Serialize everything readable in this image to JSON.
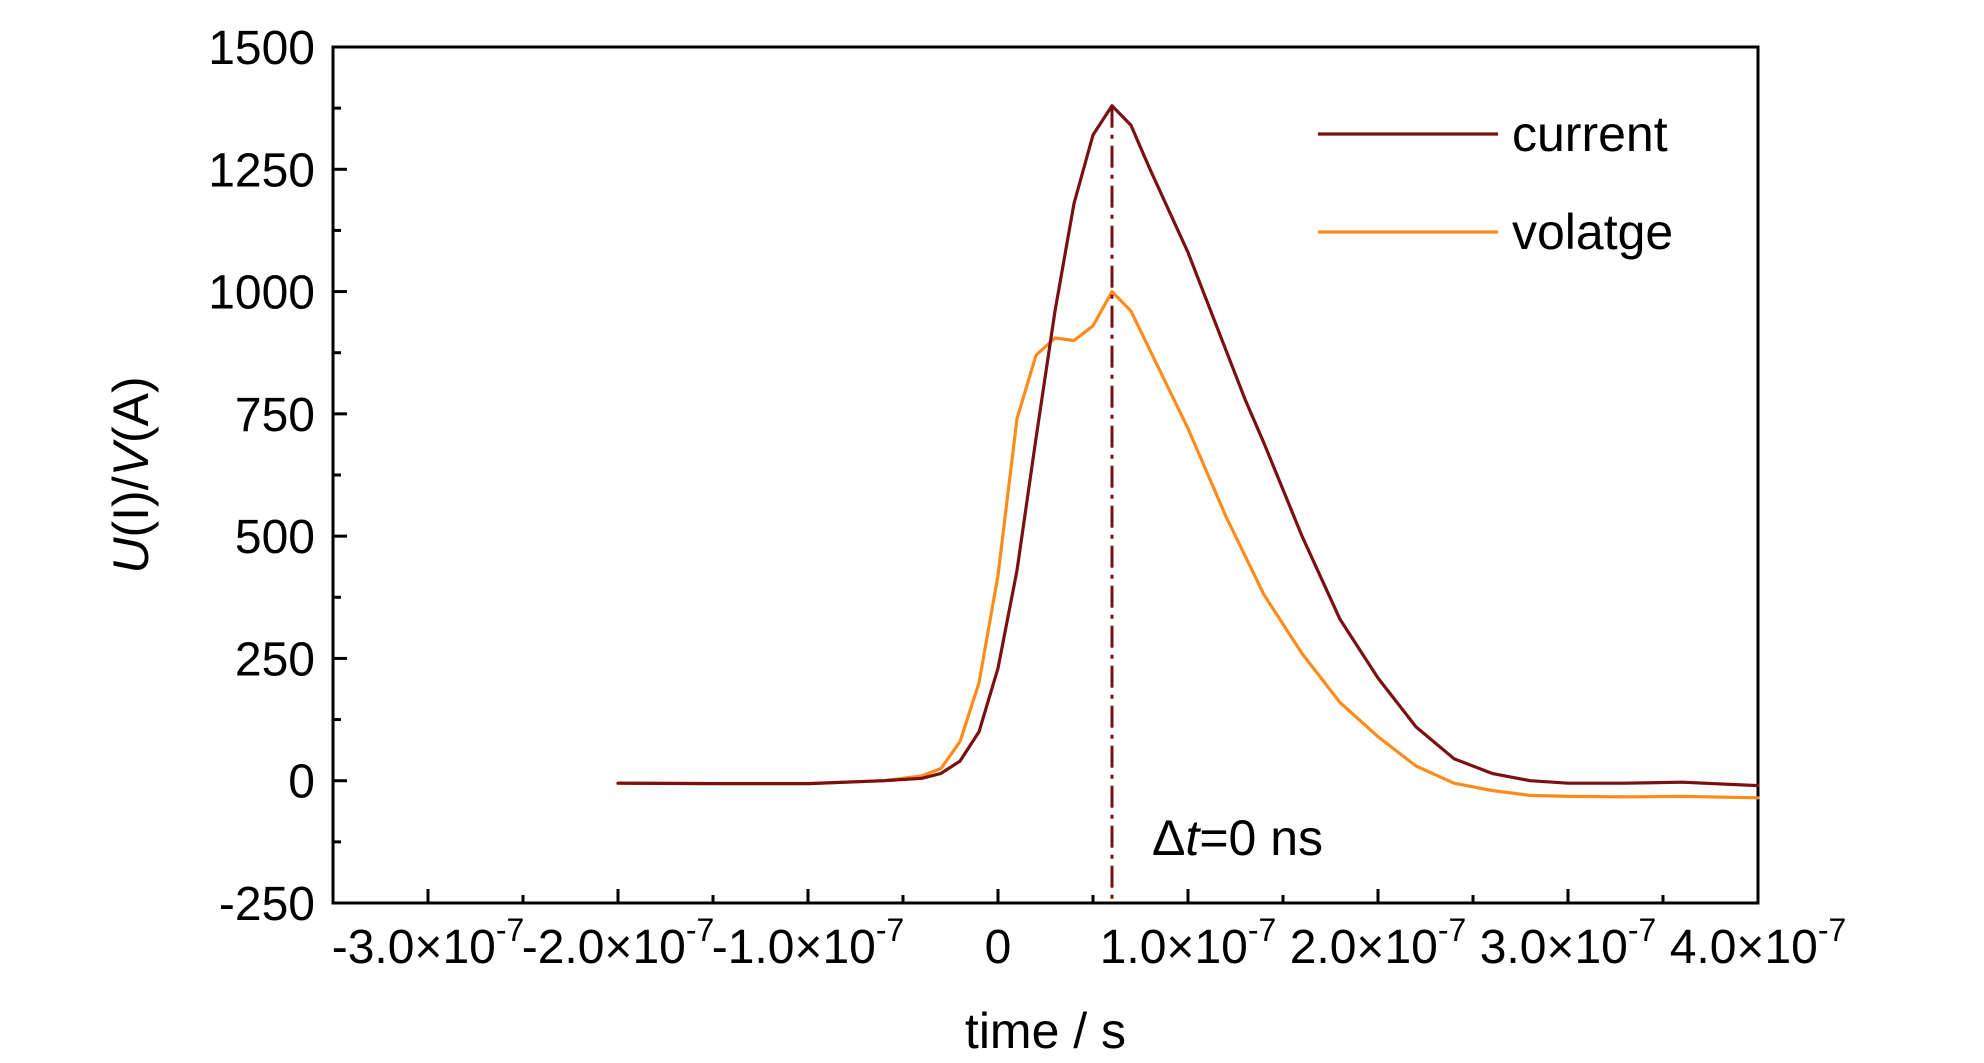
{
  "chart_data": {
    "type": "line",
    "title": "",
    "xlabel": "time / s",
    "ylabel": "U(I)/V(A)",
    "xlim": [
      -3.5e-07,
      4e-07
    ],
    "ylim": [
      -250,
      1500
    ],
    "x_ticks": [
      {
        "value": -3e-07,
        "label": "-3.0×10-7"
      },
      {
        "value": -2e-07,
        "label": "-2.0×10-7"
      },
      {
        "value": -1e-07,
        "label": "-1.0×10-7"
      },
      {
        "value": 0,
        "label": "0"
      },
      {
        "value": 1e-07,
        "label": "1.0×10-7"
      },
      {
        "value": 2e-07,
        "label": "2.0×10-7"
      },
      {
        "value": 3e-07,
        "label": "3.0×10-7"
      },
      {
        "value": 4e-07,
        "label": "4.0×10-7"
      }
    ],
    "y_ticks": [
      -250,
      0,
      250,
      500,
      750,
      1000,
      1250,
      1500
    ],
    "grid": false,
    "legend_position": "top-right",
    "series": [
      {
        "name": "current",
        "color": "#7B1010",
        "points": [
          [
            -2e-07,
            -5
          ],
          [
            -1.5e-07,
            -6
          ],
          [
            -1e-07,
            -6
          ],
          [
            -6e-08,
            0
          ],
          [
            -4e-08,
            5
          ],
          [
            -3e-08,
            15
          ],
          [
            -2e-08,
            40
          ],
          [
            -1e-08,
            100
          ],
          [
            0,
            230
          ],
          [
            1e-08,
            430
          ],
          [
            2e-08,
            700
          ],
          [
            3e-08,
            960
          ],
          [
            4e-08,
            1180
          ],
          [
            5e-08,
            1320
          ],
          [
            6e-08,
            1380
          ],
          [
            7e-08,
            1340
          ],
          [
            8e-08,
            1250
          ],
          [
            1e-07,
            1080
          ],
          [
            1.2e-07,
            880
          ],
          [
            1.3e-07,
            780
          ],
          [
            1.4e-07,
            690
          ],
          [
            1.6e-07,
            500
          ],
          [
            1.8e-07,
            330
          ],
          [
            2e-07,
            210
          ],
          [
            2.2e-07,
            110
          ],
          [
            2.4e-07,
            45
          ],
          [
            2.6e-07,
            15
          ],
          [
            2.8e-07,
            0
          ],
          [
            3e-07,
            -5
          ],
          [
            3.3e-07,
            -5
          ],
          [
            3.6e-07,
            -3
          ],
          [
            4e-07,
            -10
          ]
        ]
      },
      {
        "name": "volatge",
        "color": "#FF8C1A",
        "points": [
          [
            -2e-07,
            -5
          ],
          [
            -1.5e-07,
            -6
          ],
          [
            -1e-07,
            -6
          ],
          [
            -6e-08,
            0
          ],
          [
            -4e-08,
            10
          ],
          [
            -3e-08,
            25
          ],
          [
            -2e-08,
            80
          ],
          [
            -1e-08,
            200
          ],
          [
            0,
            420
          ],
          [
            1e-08,
            740
          ],
          [
            2e-08,
            870
          ],
          [
            3e-08,
            905
          ],
          [
            4e-08,
            900
          ],
          [
            5e-08,
            930
          ],
          [
            6e-08,
            1000
          ],
          [
            7e-08,
            960
          ],
          [
            8e-08,
            880
          ],
          [
            1e-07,
            720
          ],
          [
            1.2e-07,
            540
          ],
          [
            1.3e-07,
            460
          ],
          [
            1.4e-07,
            380
          ],
          [
            1.6e-07,
            260
          ],
          [
            1.8e-07,
            160
          ],
          [
            2e-07,
            90
          ],
          [
            2.2e-07,
            30
          ],
          [
            2.4e-07,
            -5
          ],
          [
            2.6e-07,
            -20
          ],
          [
            2.8e-07,
            -30
          ],
          [
            3e-07,
            -32
          ],
          [
            3.3e-07,
            -33
          ],
          [
            3.6e-07,
            -32
          ],
          [
            4e-07,
            -35
          ]
        ]
      }
    ],
    "annotation": {
      "x": 6e-08,
      "prefix": "Δ",
      "italic": "t",
      "suffix": "=0 ns",
      "line_color": "#7B1010"
    }
  }
}
